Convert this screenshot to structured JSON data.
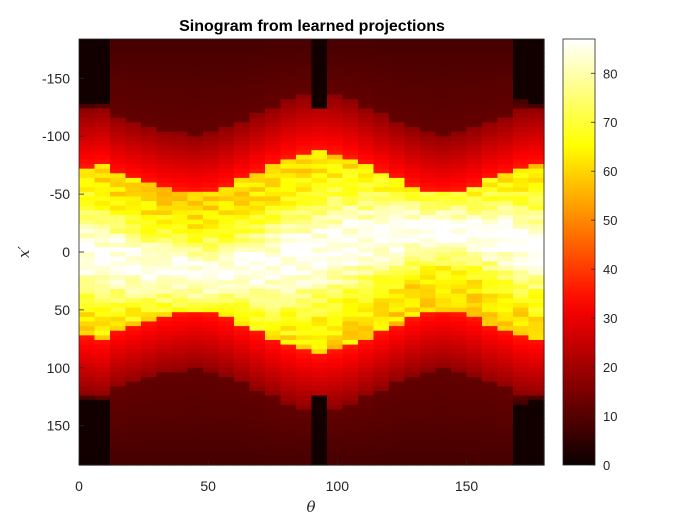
{
  "chart_data": {
    "type": "heatmap",
    "title": "Sinogram from learned projections",
    "xlabel": "θ",
    "ylabel": "x′",
    "x_range": [
      0,
      180
    ],
    "y_range": [
      -184,
      184
    ],
    "y_reversed": true,
    "x_ticks": [
      0,
      50,
      100,
      150
    ],
    "y_ticks": [
      -150,
      -100,
      -50,
      0,
      50,
      100,
      150
    ],
    "colormap": "hot",
    "colorbar": {
      "range": [
        0,
        87
      ],
      "ticks": [
        0,
        10,
        20,
        30,
        40,
        50,
        60,
        70,
        80
      ]
    },
    "theta_columns": [
      0,
      6,
      12,
      18,
      24,
      30,
      36,
      42,
      48,
      54,
      60,
      66,
      72,
      78,
      84,
      90,
      96,
      102,
      108,
      114,
      120,
      126,
      132,
      138,
      144,
      150,
      156,
      162,
      168,
      174
    ],
    "description_values": {
      "support_halfwidth_by_theta": [
        126,
        128,
        184,
        184,
        184,
        184,
        184,
        184,
        184,
        184,
        184,
        184,
        184,
        184,
        184,
        125,
        184,
        184,
        184,
        184,
        184,
        184,
        184,
        184,
        184,
        184,
        184,
        184,
        130,
        126
      ],
      "bright_core_halfwidth_by_theta": [
        72,
        74,
        66,
        62,
        58,
        54,
        52,
        50,
        52,
        56,
        62,
        68,
        74,
        80,
        84,
        86,
        84,
        80,
        74,
        68,
        62,
        56,
        52,
        50,
        52,
        56,
        62,
        66,
        72,
        74
      ],
      "peak_value": 87,
      "core_value": 68,
      "outer_value": 30,
      "dark_value": 8
    }
  }
}
